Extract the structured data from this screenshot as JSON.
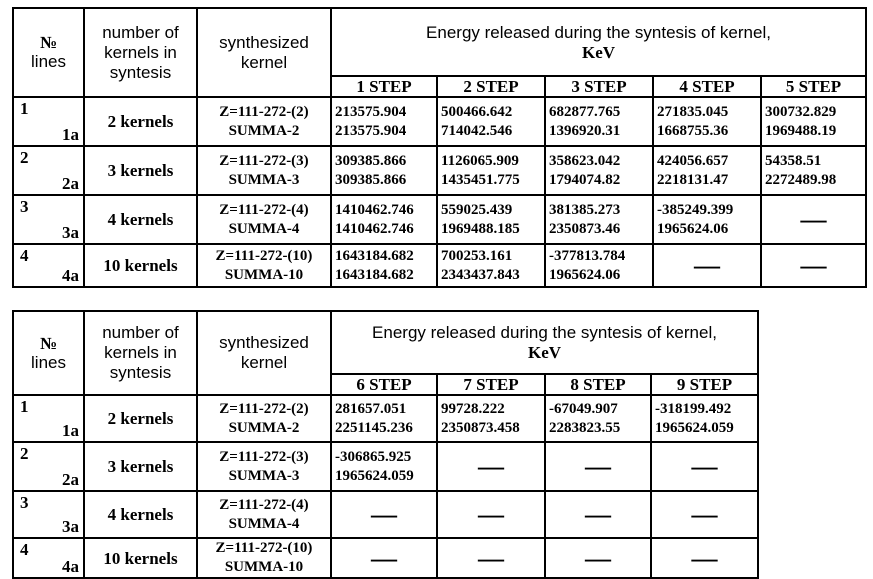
{
  "tables": [
    {
      "header": {
        "number": "№",
        "lines": "lines",
        "kernels": "number of kernels in syntesis",
        "synthesized": "synthesized kernel",
        "energy": "Energy released during the syntesis of kernel,",
        "unit": "KeV",
        "steps": [
          "1 STEP",
          "2 STEP",
          "3 STEP",
          "4 STEP",
          "5 STEP"
        ]
      },
      "rows": [
        {
          "line": "1",
          "sub": "1a",
          "kernels": "2 kernels",
          "kernel": "Z=111-272-(2)",
          "summa": "SUMMA-2",
          "cells": [
            [
              "213575.904",
              "213575.904"
            ],
            [
              "500466.642",
              "714042.546"
            ],
            [
              "682877.765",
              "1396920.31"
            ],
            [
              "271835.045",
              "1668755.36"
            ],
            [
              "300732.829",
              "1969488.19"
            ]
          ]
        },
        {
          "line": "2",
          "sub": "2a",
          "kernels": "3 kernels",
          "kernel": "Z=111-272-(3)",
          "summa": "SUMMA-3",
          "cells": [
            [
              "309385.866",
              "309385.866"
            ],
            [
              "1126065.909",
              "1435451.775"
            ],
            [
              "358623.042",
              "1794074.82"
            ],
            [
              "424056.657",
              "2218131.47"
            ],
            [
              "54358.51",
              "2272489.98"
            ]
          ]
        },
        {
          "line": "3",
          "sub": "3a",
          "kernels": "4 kernels",
          "kernel": "Z=111-272-(4)",
          "summa": "SUMMA-4",
          "cells": [
            [
              "1410462.746",
              "1410462.746"
            ],
            [
              "559025.439",
              "1969488.185"
            ],
            [
              "381385.273",
              "2350873.46"
            ],
            [
              "-385249.399",
              "1965624.06"
            ],
            [
              "—"
            ]
          ]
        },
        {
          "line": "4",
          "sub": "4a",
          "kernels": "10 kernels",
          "kernel": "Z=111-272-(10)",
          "summa": "SUMMA-10",
          "cells": [
            [
              "1643184.682",
              "1643184.682"
            ],
            [
              "700253.161",
              "2343437.843"
            ],
            [
              "-377813.784",
              "1965624.06"
            ],
            [
              "—"
            ],
            [
              "—"
            ]
          ]
        }
      ]
    },
    {
      "header": {
        "number": "№",
        "lines": "lines",
        "kernels": "number of kernels in syntesis",
        "synthesized": "synthesized kernel",
        "energy": "Energy released during the syntesis of kernel,",
        "unit": "KeV",
        "steps": [
          "6 STEP",
          "7 STEP",
          "8 STEP",
          "9 STEP"
        ]
      },
      "rows": [
        {
          "line": "1",
          "sub": "1a",
          "kernels": "2 kernels",
          "kernel": "Z=111-272-(2)",
          "summa": "SUMMA-2",
          "cells": [
            [
              "281657.051",
              "2251145.236"
            ],
            [
              "99728.222",
              "2350873.458"
            ],
            [
              "-67049.907",
              "2283823.55"
            ],
            [
              "-318199.492",
              "1965624.059"
            ]
          ]
        },
        {
          "line": "2",
          "sub": "2a",
          "kernels": "3 kernels",
          "kernel": "Z=111-272-(3)",
          "summa": "SUMMA-3",
          "cells": [
            [
              "-306865.925",
              "1965624.059"
            ],
            [
              "—"
            ],
            [
              "—"
            ],
            [
              "—"
            ]
          ]
        },
        {
          "line": "3",
          "sub": "3a",
          "kernels": "4 kernels",
          "kernel": "Z=111-272-(4)",
          "summa": "SUMMA-4",
          "cells": [
            [
              "—"
            ],
            [
              "—"
            ],
            [
              "—"
            ],
            [
              "—"
            ]
          ]
        },
        {
          "line": "4",
          "sub": "4a",
          "kernels": "10 kernels",
          "kernel": "Z=111-272-(10)",
          "summa": "SUMMA-10",
          "cells": [
            [
              "—"
            ],
            [
              "—"
            ],
            [
              "—"
            ],
            [
              "—"
            ]
          ]
        }
      ]
    }
  ]
}
